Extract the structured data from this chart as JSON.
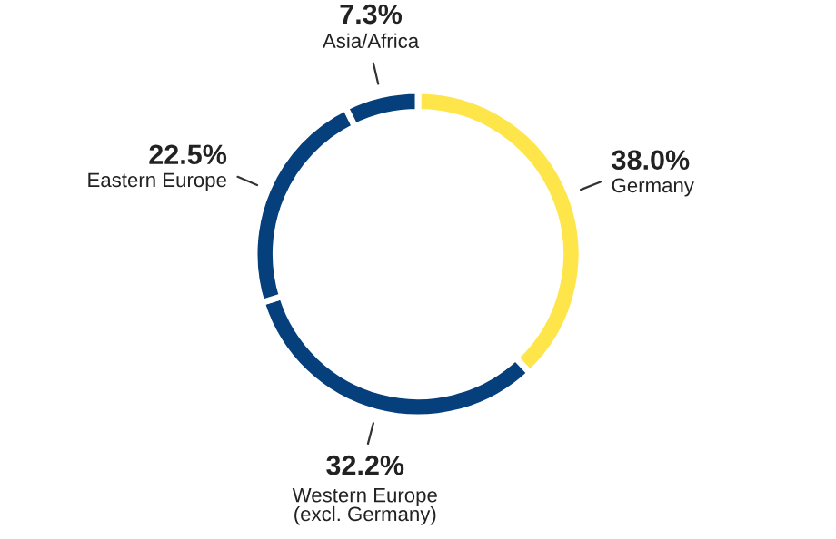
{
  "chart_data": {
    "type": "donut",
    "categories": [
      "Germany",
      "Western Europe\n(excl. Germany)",
      "Eastern Europe",
      "Asia/Africa"
    ],
    "values": [
      38.0,
      32.2,
      22.5,
      7.3
    ],
    "value_labels": [
      "38.0%",
      "32.2%",
      "22.5%",
      "7.3%"
    ],
    "colors": [
      "#fde54a",
      "#053f7c",
      "#053f7c",
      "#053f7c"
    ],
    "legend": false
  }
}
